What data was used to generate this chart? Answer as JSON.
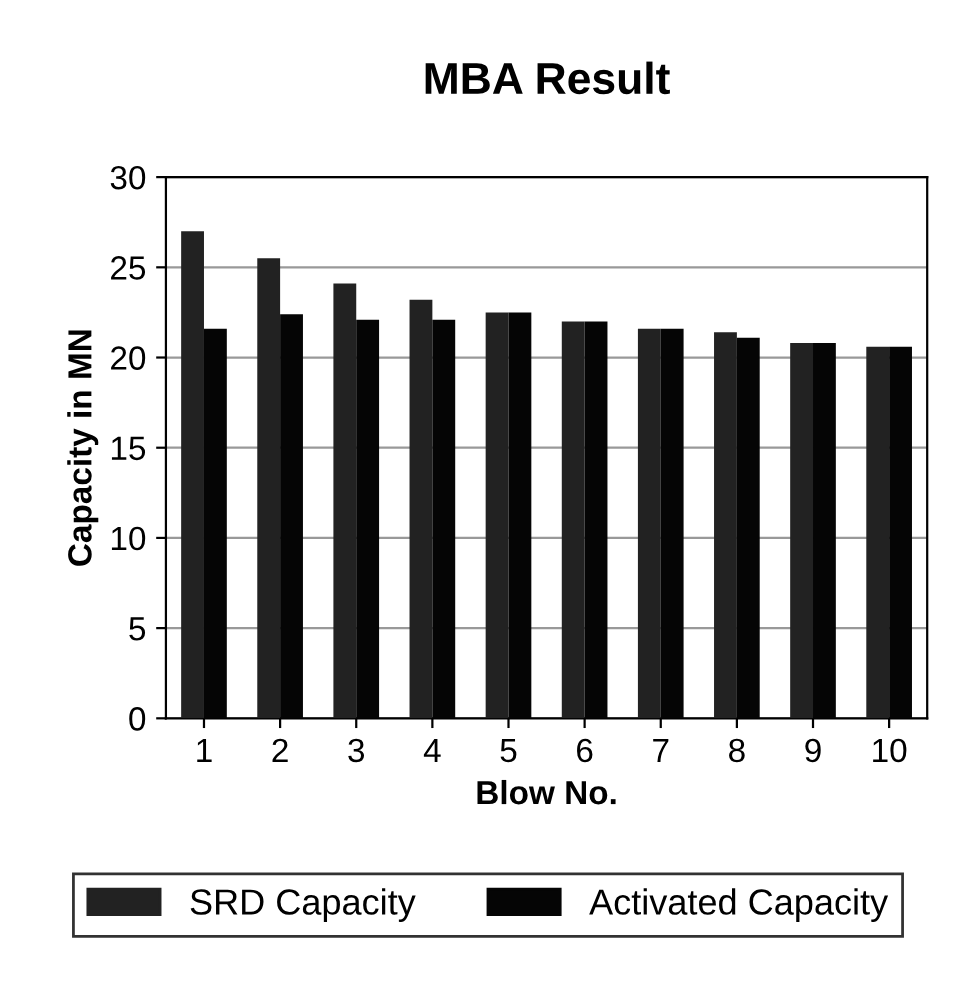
{
  "chart_data": {
    "type": "bar",
    "title": "MBA Result",
    "xlabel": "Blow No.",
    "ylabel": "Capacity in MN",
    "categories": [
      "1",
      "2",
      "3",
      "4",
      "5",
      "6",
      "7",
      "8",
      "9",
      "10"
    ],
    "series": [
      {
        "name": "SRD Capacity",
        "color": "#222222",
        "values": [
          27.0,
          25.5,
          24.1,
          23.2,
          22.5,
          22.0,
          21.6,
          21.4,
          20.8,
          20.6
        ]
      },
      {
        "name": "Activated Capacity",
        "color": "#050505",
        "values": [
          21.6,
          22.4,
          22.1,
          22.1,
          22.5,
          22.0,
          21.6,
          21.1,
          20.8,
          20.6
        ]
      }
    ],
    "ylim": [
      0,
      30
    ],
    "yticks": [
      0,
      5,
      10,
      15,
      20,
      25,
      30
    ],
    "grid": "y",
    "legend": "bottom"
  }
}
